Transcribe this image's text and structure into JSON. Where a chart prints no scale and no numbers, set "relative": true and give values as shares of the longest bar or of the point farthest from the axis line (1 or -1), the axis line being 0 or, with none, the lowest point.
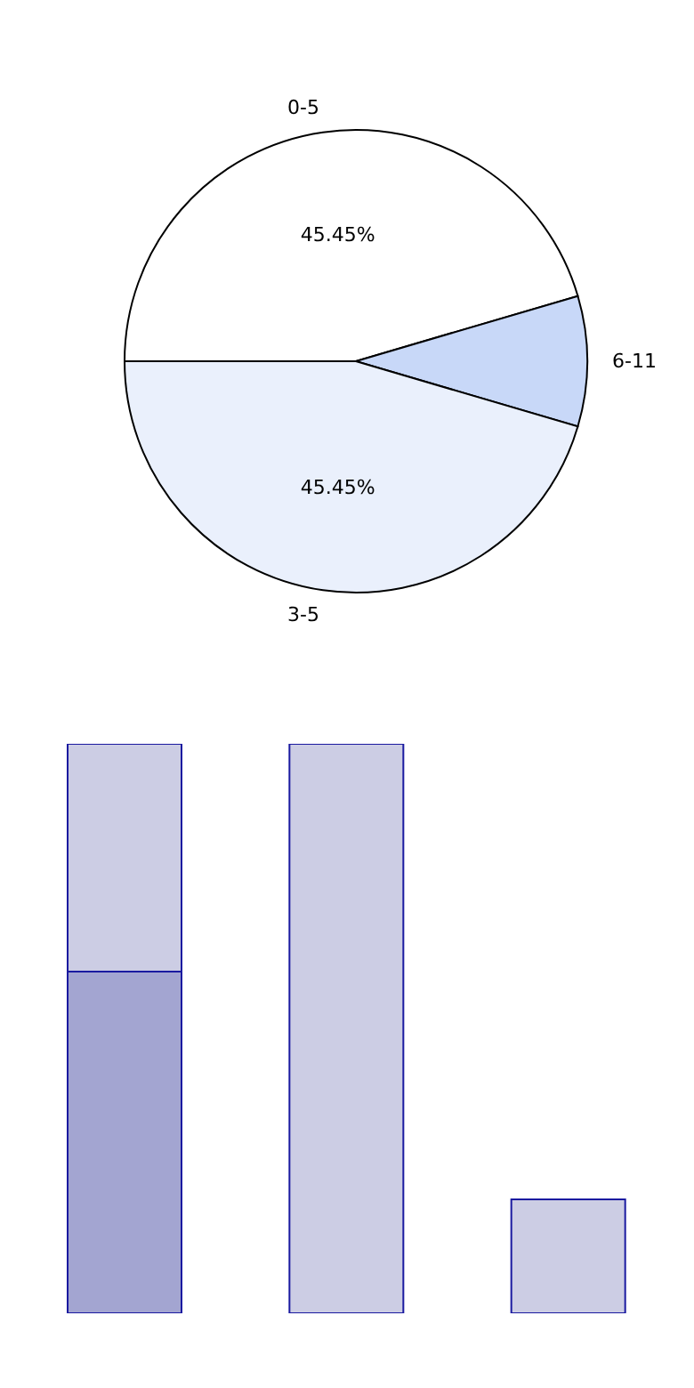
{
  "chart_data": [
    {
      "type": "pie",
      "categories": [
        "0-5",
        "6-11",
        "3-5"
      ],
      "values": [
        45.45,
        9.1,
        45.45
      ],
      "colors": [
        "#ffffff",
        "#c8d8f8",
        "#eaf0fc"
      ],
      "value_labels": [
        "45.45%",
        null,
        "45.45%"
      ]
    },
    {
      "type": "bar",
      "relative": true,
      "stacked": true,
      "categories": [
        null,
        null,
        null
      ],
      "series": [
        {
          "color": "#a3a5d1",
          "values": [
            0.6,
            null,
            null
          ]
        },
        {
          "color": "#cccde4",
          "values": [
            0.4,
            1,
            0.2
          ]
        }
      ]
    }
  ]
}
